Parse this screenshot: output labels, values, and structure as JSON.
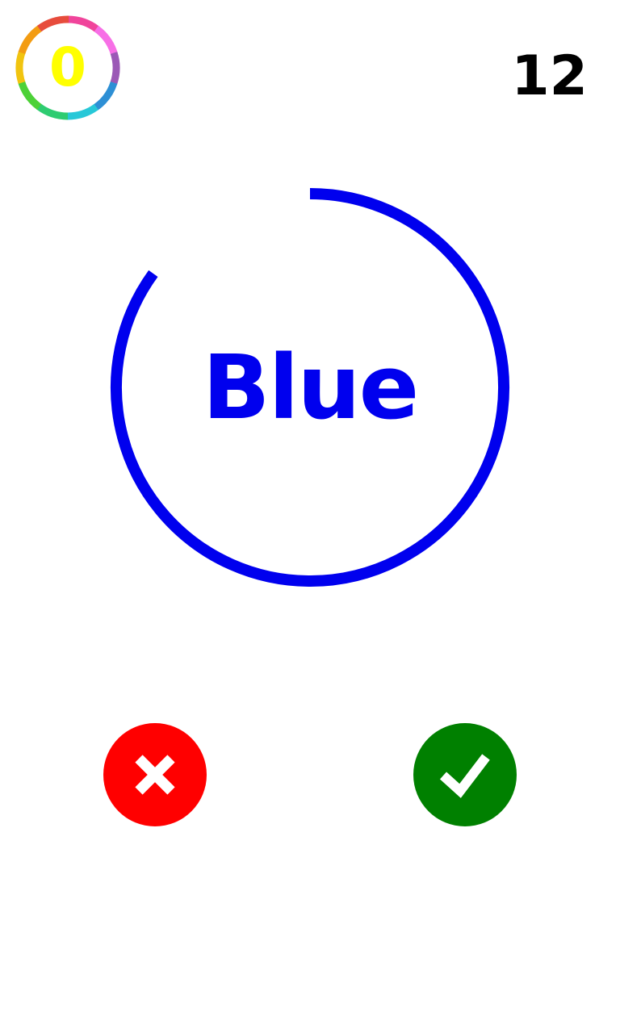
{
  "score": {
    "value": "0",
    "text_color": "#ffff00",
    "ring_colors": [
      "#f0449b",
      "#f76fe6",
      "#9b59b6",
      "#2d8fd5",
      "#27c8d8",
      "#2ecc71",
      "#4cd137",
      "#f1c40f",
      "#f39c12",
      "#e74c3c"
    ]
  },
  "timer": {
    "value": "12"
  },
  "word": {
    "text": "Blue",
    "text_color": "#0000ee",
    "ring_color": "#0000ee",
    "time_remaining_fraction": 0.85
  },
  "buttons": {
    "wrong": {
      "icon": "close-icon",
      "color": "#ff0000"
    },
    "right": {
      "icon": "check-icon",
      "color": "#008000"
    }
  }
}
